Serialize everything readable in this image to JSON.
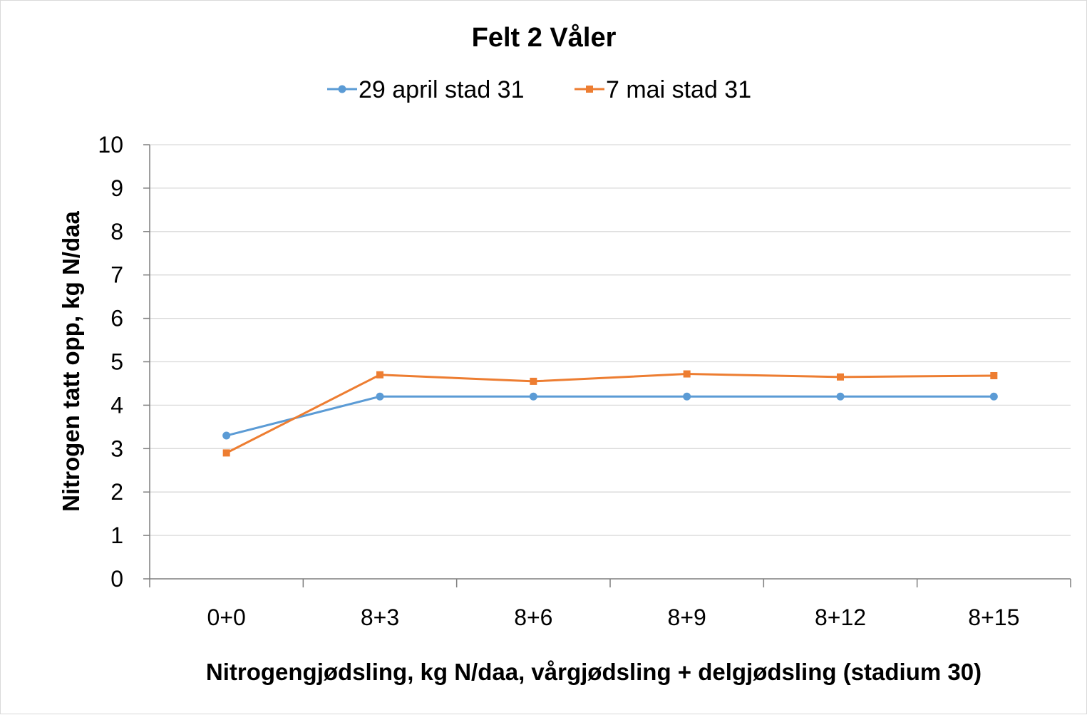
{
  "chart_data": {
    "type": "line",
    "title": "Felt 2 Våler",
    "xlabel": "Nitrogengjødsling, kg N/daa, vårgjødsling + delgjødsling (stadium 30)",
    "ylabel": "Nitrogen tatt opp, kg N/daa",
    "categories": [
      "0+0",
      "8+3",
      "8+6",
      "8+9",
      "8+12",
      "8+15"
    ],
    "ylim": [
      0,
      10
    ],
    "yticks": [
      "0",
      "1",
      "2",
      "3",
      "4",
      "5",
      "6",
      "7",
      "8",
      "9",
      "10"
    ],
    "grid": true,
    "legend_position": "top",
    "series": [
      {
        "name": "29 april stad 31",
        "color": "#5b9bd5",
        "marker": "circle",
        "values": [
          3.3,
          4.2,
          4.2,
          4.2,
          4.2,
          4.2
        ]
      },
      {
        "name": "7 mai stad 31",
        "color": "#ed7d31",
        "marker": "square",
        "values": [
          2.9,
          4.7,
          4.55,
          4.72,
          4.65,
          4.68
        ]
      }
    ]
  }
}
